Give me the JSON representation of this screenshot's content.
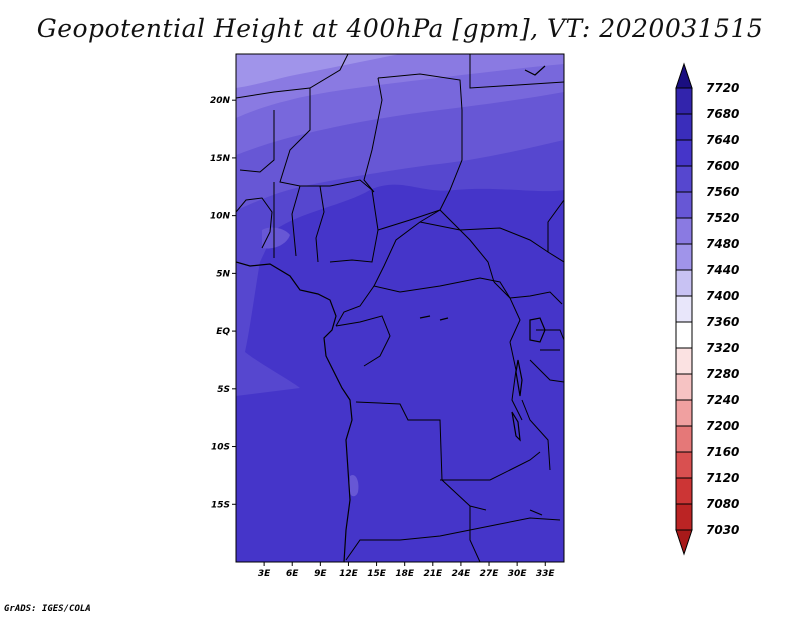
{
  "title": "Geopotential Height at 400hPa [gpm], VT: 2020031515",
  "credit": "GrADS: IGES/COLA",
  "map": {
    "lon_range": [
      0,
      35
    ],
    "lat_range": [
      -20,
      24
    ],
    "x_ticks": [
      "3E",
      "6E",
      "9E",
      "12E",
      "15E",
      "18E",
      "21E",
      "24E",
      "27E",
      "30E",
      "33E"
    ],
    "y_ticks": [
      "20N",
      "15N",
      "10N",
      "5N",
      "EQ",
      "5S",
      "10S",
      "15S"
    ],
    "field_colors": [
      "#4535c9",
      "#5647cf",
      "#6757d5",
      "#7868dc",
      "#8a7ae2",
      "#a094ea"
    ]
  },
  "colorbar": {
    "labels": [
      "7720",
      "7680",
      "7640",
      "7600",
      "7560",
      "7520",
      "7480",
      "7440",
      "7400",
      "7360",
      "7320",
      "7280",
      "7240",
      "7200",
      "7160",
      "7120",
      "7080",
      "7030"
    ],
    "colors": [
      "#281890",
      "#3224ac",
      "#3a2dbb",
      "#4535c9",
      "#5647cf",
      "#6757d5",
      "#8a7ae2",
      "#a094ea",
      "#c8c2f3",
      "#e8e6fa",
      "#ffffff",
      "#fbe2e2",
      "#f6c3c3",
      "#f0a0a0",
      "#e57878",
      "#d95050",
      "#cc3535",
      "#bb2424",
      "#a81a1a"
    ],
    "top_color": "#1a0e80",
    "bottom_color": "#a81a1a"
  }
}
